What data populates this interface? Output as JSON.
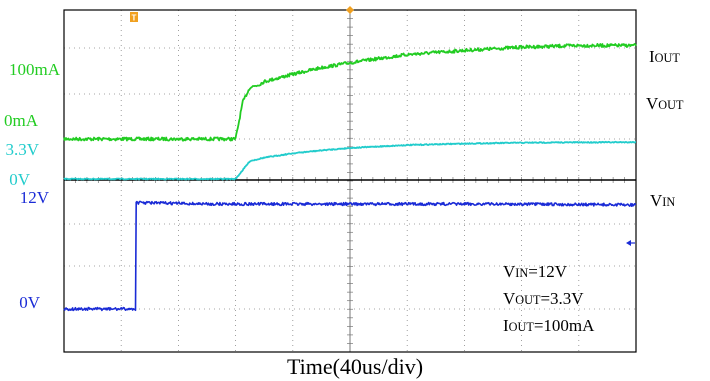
{
  "chart_data": {
    "type": "line",
    "title": "",
    "x_unit_per_div": 40,
    "x_divisions": 10,
    "xlabel": "Time(40us/div)",
    "xlim": [
      0,
      400
    ],
    "grid": true,
    "colors": {
      "iout": "#22cc22",
      "vout": "#22cccc",
      "vin": "#1a2bd6",
      "marker": "#f0a020",
      "grid": "#888888"
    },
    "series": [
      {
        "name": "IOUT",
        "label_main": "I",
        "label_sub": "OUT",
        "level_labels": [
          "100mA",
          "0mA"
        ],
        "level_values": [
          100,
          0
        ],
        "unit": "mA",
        "x": [
          0,
          40,
          80,
          120,
          125,
          130,
          136,
          140,
          160,
          180,
          200,
          240,
          280,
          320,
          360,
          400
        ],
        "y": [
          0,
          0,
          0,
          0,
          45,
          63,
          66,
          70,
          79,
          87,
          93,
          103,
          108,
          112,
          114,
          114
        ]
      },
      {
        "name": "VOUT",
        "label_main": "V",
        "label_sub": "OUT",
        "level_labels": [
          "3.3V",
          "0V"
        ],
        "level_values": [
          3.3,
          0
        ],
        "unit": "V",
        "x": [
          0,
          40,
          80,
          120,
          130,
          140,
          160,
          180,
          200,
          240,
          280,
          320,
          360,
          400
        ],
        "y": [
          0,
          0,
          0,
          0,
          1.85,
          2.2,
          2.65,
          2.95,
          3.2,
          3.5,
          3.65,
          3.74,
          3.78,
          3.8
        ]
      },
      {
        "name": "VIN",
        "label_main": "V",
        "label_sub": "IN",
        "level_labels": [
          "12V",
          "0V"
        ],
        "level_values": [
          12,
          0
        ],
        "unit": "V",
        "x": [
          0,
          30,
          50,
          50,
          55,
          100,
          200,
          300,
          400
        ],
        "y": [
          0,
          0,
          0,
          12.15,
          12.15,
          12,
          12,
          12,
          11.9
        ]
      }
    ],
    "annotation": [
      {
        "main": "V",
        "sub": "IN",
        "value": "=12V"
      },
      {
        "main": "V",
        "sub": "OUT",
        "value": "=3.3V"
      },
      {
        "main": "I",
        "sub": "OUT",
        "value": "=100mA"
      }
    ],
    "trigger_marker_label": "T"
  }
}
